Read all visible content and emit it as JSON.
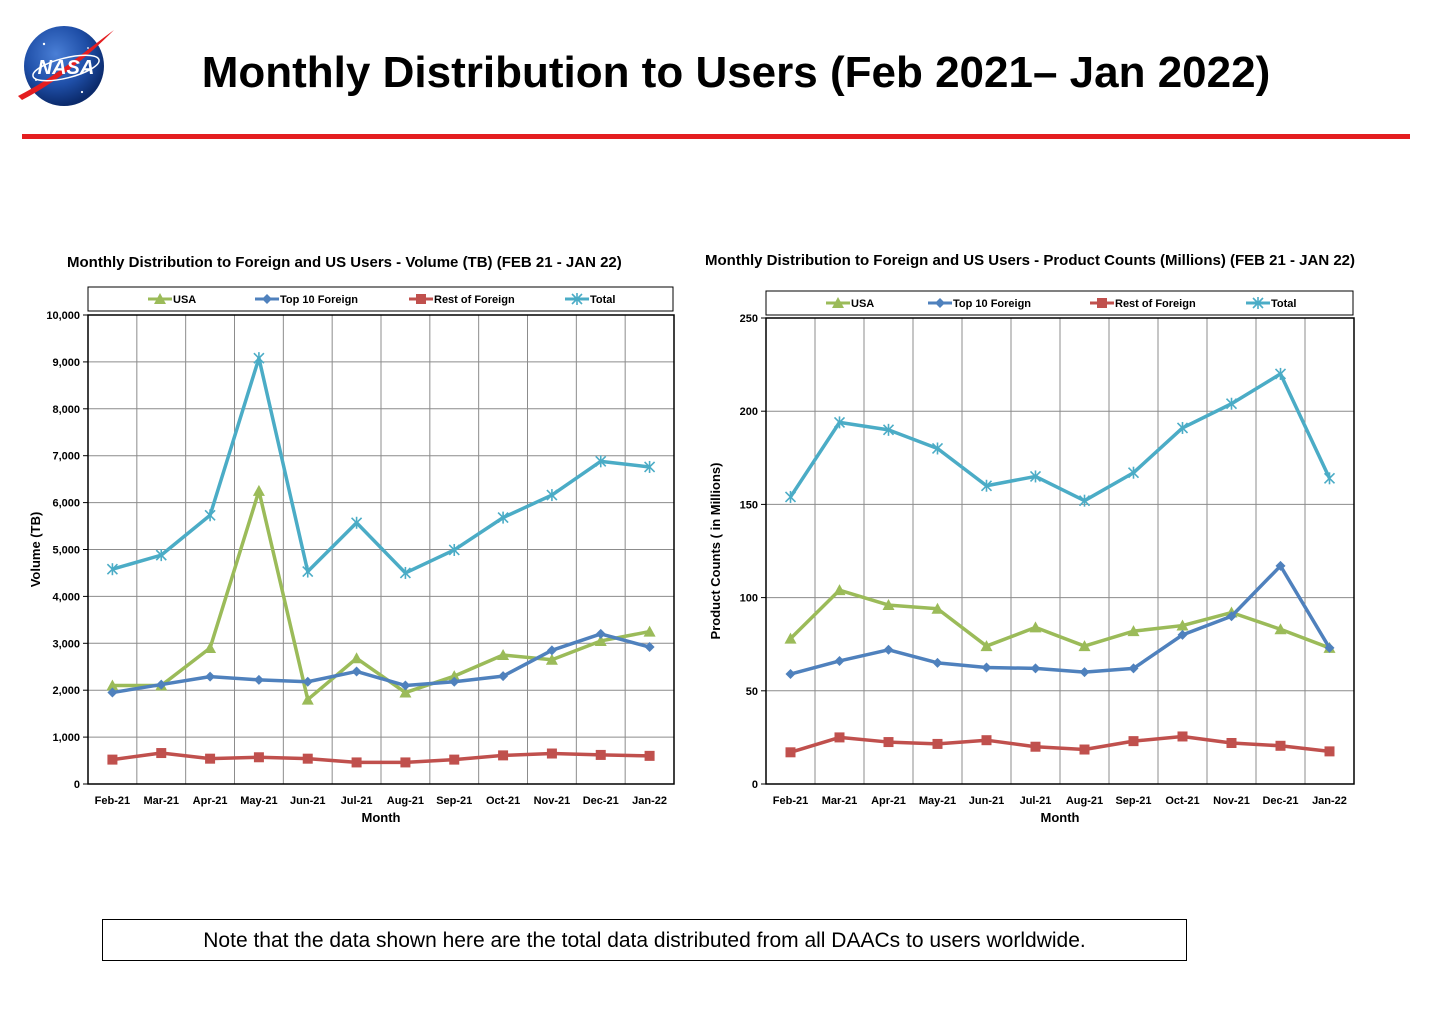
{
  "page": {
    "title": "Monthly Distribution to Users (Feb 2021– Jan 2022)",
    "logo_text": "NASA",
    "note": "Note that the data shown here are the total data distributed from all DAACs to users worldwide."
  },
  "colors": {
    "usa": "#9bbb59",
    "top10": "#4f81bd",
    "rest": "#c0504d",
    "total": "#4bacc6",
    "title_rule": "#e41e20"
  },
  "chart_data": [
    {
      "type": "line",
      "title": "Monthly Distribution to Foreign and US Users - Volume  (TB) (FEB 21 - JAN 22)",
      "xlabel": "Month",
      "ylabel": "Volume (TB)",
      "ylim": [
        0,
        10000
      ],
      "yticks": [
        "0",
        "1,000",
        "2,000",
        "3,000",
        "4,000",
        "5,000",
        "6,000",
        "7,000",
        "8,000",
        "9,000",
        "10,000"
      ],
      "grid": true,
      "legend_position": "top",
      "categories": [
        "Feb-21",
        "Mar-21",
        "Apr-21",
        "May-21",
        "Jun-21",
        "Jul-21",
        "Aug-21",
        "Sep-21",
        "Oct-21",
        "Nov-21",
        "Dec-21",
        "Jan-22"
      ],
      "series": [
        {
          "name": "USA",
          "marker": "triangle",
          "values": [
            2100,
            2100,
            2900,
            6250,
            1800,
            2680,
            1950,
            2300,
            2750,
            2650,
            3050,
            3250
          ]
        },
        {
          "name": "Top 10 Foreign",
          "marker": "diamond",
          "values": [
            1950,
            2120,
            2290,
            2220,
            2180,
            2400,
            2100,
            2180,
            2300,
            2850,
            3200,
            2920
          ]
        },
        {
          "name": "Rest of Foreign",
          "marker": "square",
          "values": [
            520,
            660,
            540,
            570,
            540,
            460,
            460,
            520,
            610,
            650,
            620,
            600
          ]
        },
        {
          "name": "Total",
          "marker": "x",
          "values": [
            4580,
            4880,
            5730,
            9080,
            4530,
            5570,
            4500,
            4990,
            5680,
            6160,
            6880,
            6760
          ]
        }
      ]
    },
    {
      "type": "line",
      "title": "Monthly Distribution to Foreign and US Users - Product Counts (Millions) (FEB 21 - JAN 22)",
      "xlabel": "Month",
      "ylabel": "Product Counts ( in Millions)",
      "ylim": [
        0,
        250
      ],
      "yticks": [
        "0",
        "50",
        "100",
        "150",
        "200",
        "250"
      ],
      "grid": true,
      "legend_position": "top",
      "categories": [
        "Feb-21",
        "Mar-21",
        "Apr-21",
        "May-21",
        "Jun-21",
        "Jul-21",
        "Aug-21",
        "Sep-21",
        "Oct-21",
        "Nov-21",
        "Dec-21",
        "Jan-22"
      ],
      "series": [
        {
          "name": "USA",
          "marker": "triangle",
          "values": [
            78,
            104,
            96,
            94,
            74,
            84,
            74,
            82,
            85,
            92,
            83,
            73
          ]
        },
        {
          "name": "Top 10 Foreign",
          "marker": "diamond",
          "values": [
            59,
            66,
            72,
            65,
            62.5,
            62,
            60,
            62,
            80,
            90,
            117,
            73
          ]
        },
        {
          "name": "Rest of Foreign",
          "marker": "square",
          "values": [
            17,
            25,
            22.5,
            21.5,
            23.5,
            20,
            18.5,
            23,
            25.5,
            22,
            20.5,
            17.5
          ]
        },
        {
          "name": "Total",
          "marker": "x",
          "values": [
            154,
            194,
            190,
            180,
            160,
            165,
            152,
            167,
            191,
            204,
            220,
            164
          ]
        }
      ]
    }
  ]
}
